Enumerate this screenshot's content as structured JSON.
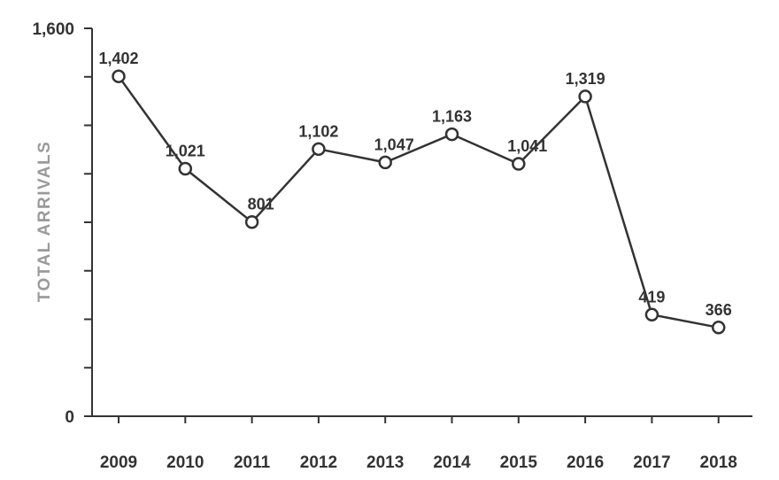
{
  "chart_data": {
    "type": "line",
    "ylabel": "TOTAL ARRIVALS",
    "ylim": [
      0,
      1600
    ],
    "y_tick_labels": [
      {
        "value": 0,
        "label": "0"
      },
      {
        "value": 1600,
        "label": "1,600"
      }
    ],
    "y_minor_ticks": [
      200,
      400,
      600,
      800,
      1000,
      1200,
      1400
    ],
    "x": [
      "2009",
      "2010",
      "2011",
      "2012",
      "2013",
      "2014",
      "2015",
      "2016",
      "2017",
      "2018"
    ],
    "values": [
      1402,
      1021,
      801,
      1102,
      1047,
      1163,
      1041,
      1319,
      419,
      366
    ],
    "value_labels": [
      "1,402",
      "1,021",
      "801",
      "1,102",
      "1,047",
      "1,163",
      "1,041",
      "1,319",
      "419",
      "366"
    ],
    "grid": false,
    "legend": "none",
    "colors": {
      "line": "#333333",
      "marker_fill": "#ffffff",
      "axis": "#333333",
      "ylabel": "#9a9a9a"
    }
  }
}
